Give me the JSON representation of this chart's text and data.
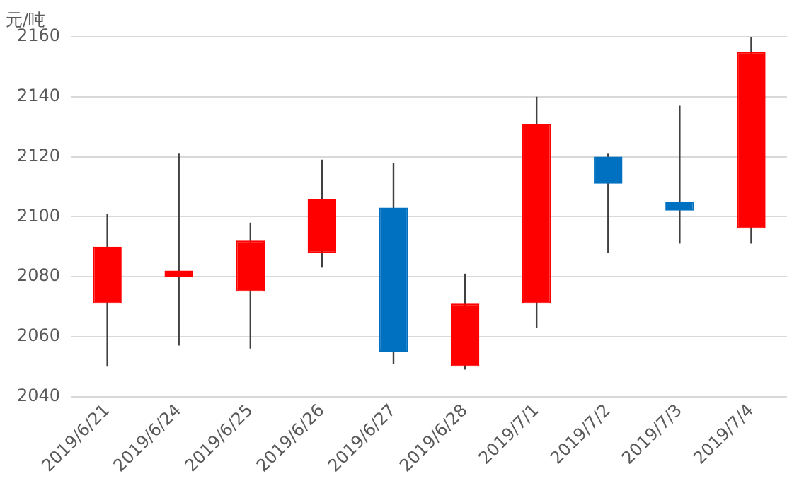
{
  "chart_data": {
    "type": "candlestick",
    "ylabel": "元/吨",
    "categories": [
      "2019/6/21",
      "2019/6/24",
      "2019/6/25",
      "2019/6/26",
      "2019/6/27",
      "2019/6/28",
      "2019/7/1",
      "2019/7/2",
      "2019/7/3",
      "2019/7/4"
    ],
    "ohlc": [
      [
        2071,
        2101,
        2050,
        2090
      ],
      [
        2080,
        2121,
        2057,
        2082
      ],
      [
        2075,
        2098,
        2056,
        2092
      ],
      [
        2088,
        2119,
        2083,
        2106
      ],
      [
        2103,
        2118,
        2051,
        2055
      ],
      [
        2050,
        2081,
        2049,
        2071
      ],
      [
        2071,
        2140,
        2063,
        2131
      ],
      [
        2120,
        2121,
        2088,
        2111
      ],
      [
        2105,
        2137,
        2091,
        2102
      ],
      [
        2096,
        2160,
        2091,
        2155
      ]
    ],
    "colors": [
      "#ff0000",
      "#ff0000",
      "#ff0000",
      "#ff0000",
      "#0070c0",
      "#ff0000",
      "#ff0000",
      "#0070c0",
      "#0070c0",
      "#ff0000"
    ],
    "ylim": [
      2040,
      2160
    ],
    "yticks": [
      2040,
      2060,
      2080,
      2100,
      2120,
      2140,
      2160
    ],
    "grid": "y",
    "legend": false
  }
}
